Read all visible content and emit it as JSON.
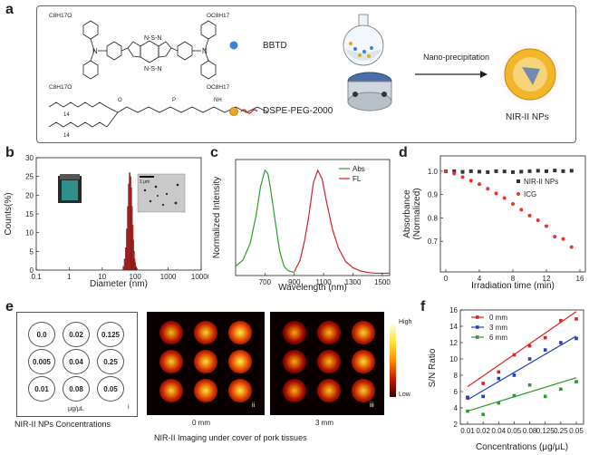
{
  "panel_a": {
    "letter": "a",
    "chem_labels": [
      "C8H17O",
      "OC8H17",
      "C8H17O",
      "OC8H17"
    ],
    "bbtd_label": "BBTD",
    "dspe_label": "DSPE-PEG-2000",
    "arrow_label": "Nano-precipitation",
    "product_label": "NIR-II NPs"
  },
  "panel_b": {
    "letter": "b",
    "scale_bar": "1 μm"
  },
  "panel_c": {
    "letter": "c"
  },
  "panel_d": {
    "letter": "d"
  },
  "panel_e": {
    "letter": "e",
    "grid_values": [
      "0.0",
      "0.02",
      "0.125",
      "0.005",
      "0.04",
      "0.25",
      "0.01",
      "0.08",
      "0.05"
    ],
    "unit": "μg/μL",
    "sub_i": "i",
    "caption_left": "NIR-II NPs Concentrations",
    "sub_ii": "ii",
    "depth_ii": "0 mm",
    "sub_iii": "iii",
    "depth_iii": "3 mm",
    "caption_right": "NIR-II Imaging under cover of pork tissues",
    "colorbar_high": "High",
    "colorbar_low": "Low"
  },
  "panel_f": {
    "letter": "f"
  },
  "chart_data": [
    {
      "panel": "b",
      "type": "bar",
      "xlabel": "Diameter (nm)",
      "ylabel": "Counts(%)",
      "xscale": "log",
      "xlim": [
        0.1,
        10000
      ],
      "ylim": [
        0,
        30
      ],
      "xticks": [
        "0.1",
        "1",
        "10",
        "100",
        "1000",
        "10000"
      ],
      "yticks": [
        "0",
        "5",
        "10",
        "15",
        "20",
        "25",
        "30"
      ],
      "x": [
        44,
        48,
        52,
        56,
        60,
        64,
        68,
        72,
        76,
        80,
        84,
        88,
        92,
        96,
        100,
        106,
        112
      ],
      "values": [
        1,
        3,
        6,
        11,
        17,
        23,
        26,
        25,
        22,
        17,
        12,
        8,
        5,
        3,
        2,
        1,
        0.5
      ],
      "colors": {
        "bars": "#d42020"
      }
    },
    {
      "panel": "c",
      "type": "line",
      "xlabel": "Wavelength (nm)",
      "ylabel": "Normalized Intensity",
      "xlim": [
        500,
        1550
      ],
      "ylim": [
        0,
        1.5
      ],
      "xticks": [
        "700",
        "900",
        "1100",
        "1300",
        "1500"
      ],
      "yticks": [
        "0.0",
        "0.2",
        "0.4",
        "0.6",
        "0.8",
        "1.0",
        "1.2",
        "1.4"
      ],
      "series": [
        {
          "name": "Abs",
          "color": "#2aa02a",
          "x": [
            500,
            550,
            600,
            640,
            670,
            700,
            720,
            740,
            770,
            800,
            830,
            860,
            900
          ],
          "y": [
            0.12,
            0.2,
            0.42,
            0.78,
            1.15,
            1.36,
            1.32,
            1.1,
            0.7,
            0.32,
            0.12,
            0.06,
            0.04
          ]
        },
        {
          "name": "FL",
          "color": "#d42020",
          "x": [
            900,
            940,
            970,
            1000,
            1030,
            1060,
            1090,
            1120,
            1160,
            1200,
            1250,
            1300,
            1350,
            1400,
            1450,
            1500,
            1550
          ],
          "y": [
            0.05,
            0.2,
            0.45,
            0.78,
            1.2,
            1.36,
            1.25,
            0.95,
            0.6,
            0.36,
            0.18,
            0.1,
            0.06,
            0.04,
            0.03,
            0.03,
            0.03
          ]
        }
      ]
    },
    {
      "panel": "d",
      "type": "scatter",
      "xlabel": "Irradiation time (min)",
      "ylabel": "Absorbance\n(Normalized)",
      "xlim": [
        0,
        16
      ],
      "ylim": [
        0.6,
        1.05
      ],
      "xticks": [
        "0",
        "4",
        "8",
        "12",
        "16"
      ],
      "yticks": [
        "0.7",
        "0.8",
        "0.9",
        "1.0"
      ],
      "series": [
        {
          "name": "NIR-II NPs",
          "color": "#333333",
          "marker": "square",
          "x": [
            0,
            1,
            2,
            3,
            4,
            5,
            6,
            7,
            8,
            9,
            10,
            11,
            12,
            13,
            14,
            15
          ],
          "y": [
            1.0,
            1.0,
            0.997,
            1.0,
            0.998,
            0.996,
            1.0,
            0.999,
            0.996,
            0.998,
            1.0,
            1.002,
            1.0,
            1.003,
            1.0,
            1.002
          ]
        },
        {
          "name": "ICG",
          "color": "#e53535",
          "marker": "circle",
          "x": [
            0,
            1,
            2,
            3,
            4,
            5,
            6,
            7,
            8,
            9,
            10,
            11,
            12,
            13,
            14,
            15
          ],
          "y": [
            1.0,
            0.99,
            0.975,
            0.96,
            0.945,
            0.925,
            0.905,
            0.885,
            0.86,
            0.835,
            0.81,
            0.79,
            0.765,
            0.72,
            0.71,
            0.675
          ]
        }
      ]
    },
    {
      "panel": "f",
      "type": "scatter",
      "xlabel": "Concentrations (μg/μL)",
      "ylabel": "S/N Ratio",
      "ylim": [
        2,
        16
      ],
      "categories": [
        "0.01",
        "0.02",
        "0.04",
        "0.05",
        "0.08",
        "0.125",
        "0.25",
        "0.05"
      ],
      "yticks": [
        "2",
        "4",
        "6",
        "8",
        "10",
        "12",
        "14",
        "16"
      ],
      "series": [
        {
          "name": "0 mm",
          "color": "#e02020",
          "values": [
            5.2,
            7.0,
            8.4,
            10.5,
            11.6,
            12.6,
            14.7,
            14.9
          ],
          "fit": [
            6.6,
            15.8
          ]
        },
        {
          "name": "3 mm",
          "color": "#1f3fc0",
          "values": [
            5.3,
            5.4,
            7.6,
            8.0,
            10.0,
            11.1,
            12.0,
            12.5
          ],
          "fit": [
            5.0,
            12.8
          ]
        },
        {
          "name": "6 mm",
          "color": "#2a9a2a",
          "values": [
            3.6,
            3.2,
            4.6,
            5.5,
            6.8,
            5.4,
            6.3,
            7.2
          ],
          "fit": [
            3.6,
            7.7
          ]
        }
      ]
    }
  ]
}
